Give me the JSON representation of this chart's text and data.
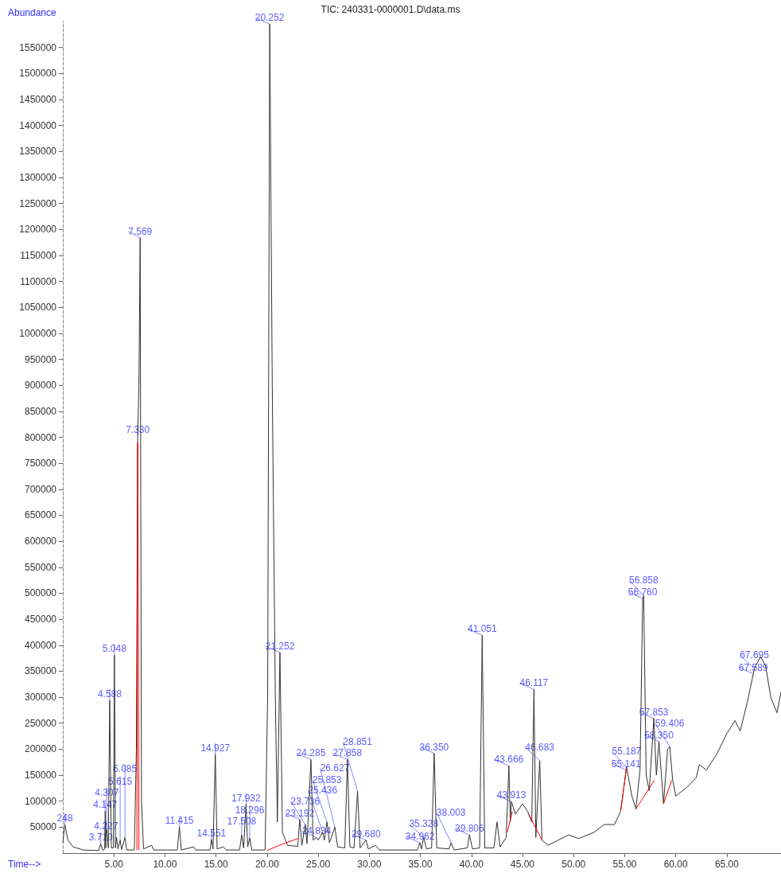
{
  "chart_data": {
    "type": "line",
    "title": "TIC: 240331-0000001.D\\data.ms",
    "xlabel": "Time-->",
    "ylabel": "Abundance",
    "marker": "none",
    "xlim": [
      0,
      70.3
    ],
    "ylim": [
      0,
      1600000
    ],
    "xticks": [
      {
        "value": 5,
        "label": "5.00"
      },
      {
        "value": 10,
        "label": "10.00"
      },
      {
        "value": 15,
        "label": "15.00"
      },
      {
        "value": 20,
        "label": "20.00"
      },
      {
        "value": 25,
        "label": "25.00"
      },
      {
        "value": 30,
        "label": "30.00"
      },
      {
        "value": 35,
        "label": "35.00"
      },
      {
        "value": 40,
        "label": "40.00"
      },
      {
        "value": 45,
        "label": "45.00"
      },
      {
        "value": 50,
        "label": "50.00"
      },
      {
        "value": 55,
        "label": "55.00"
      },
      {
        "value": 60,
        "label": "60.00"
      },
      {
        "value": 65,
        "label": "65.00"
      }
    ],
    "yticks": [
      50000,
      100000,
      150000,
      200000,
      250000,
      300000,
      350000,
      400000,
      450000,
      500000,
      550000,
      600000,
      650000,
      700000,
      750000,
      800000,
      850000,
      900000,
      950000,
      1000000,
      1050000,
      1100000,
      1150000,
      1200000,
      1250000,
      1300000,
      1350000,
      1400000,
      1450000,
      1500000,
      1550000
    ],
    "series": [
      {
        "color": "#333333",
        "x": [
          0,
          0.2,
          0.5,
          1.0,
          2,
          3.5,
          3.71,
          3.9,
          4.1,
          4.147,
          4.2,
          4.227,
          4.307,
          4.45,
          4.588,
          4.75,
          4.95,
          5.048,
          5.15,
          5.261,
          5.4,
          5.615,
          5.75,
          6.085,
          6.25,
          7.0,
          7.2,
          7.33,
          7.45,
          7.569,
          7.7,
          7.9,
          8.7,
          8.9,
          11.2,
          11.415,
          11.6,
          12.8,
          13,
          14.4,
          14.551,
          14.7,
          14.927,
          15.1,
          15.7,
          16,
          17.3,
          17.508,
          17.7,
          17.932,
          18.1,
          18.296,
          18.5,
          19.8,
          20.05,
          20.252,
          20.5,
          20.8,
          21.0,
          21.252,
          21.5,
          22,
          23,
          23.192,
          23.4,
          23.736,
          23.9,
          24.285,
          24.5,
          24.834,
          25.0,
          25.436,
          25.6,
          25.853,
          26.1,
          26.627,
          26.9,
          27.6,
          27.858,
          28.1,
          28.5,
          28.851,
          29.1,
          29.68,
          29.9,
          30.6,
          31,
          34.7,
          34.962,
          35.1,
          35.328,
          35.6,
          36.1,
          36.35,
          36.6,
          37.8,
          38.003,
          38.3,
          39.6,
          39.806,
          40.1,
          40.8,
          41.051,
          41.3,
          42.2,
          42.5,
          42.8,
          43.4,
          43.666,
          43.8,
          43.913,
          44.3,
          45.0,
          45.5,
          45.9,
          46.117,
          46.3,
          46.683,
          46.9,
          47.5,
          48.5,
          49.5,
          50.5,
          52,
          53,
          54,
          54.6,
          55.141,
          55.187,
          55.7,
          56.1,
          56.5,
          56.76,
          56.858,
          57.1,
          57.4,
          57.853,
          58.1,
          58.35,
          58.8,
          59.2,
          59.406,
          59.7,
          60,
          61,
          62,
          62.3,
          63,
          64,
          65,
          65.8,
          66.3,
          67,
          67.589,
          67.695,
          68.3,
          68.8,
          69.3,
          69.9,
          70.3
        ],
        "values": [
          20000,
          55000,
          25000,
          12000,
          6000,
          5000,
          18000,
          5000,
          8000,
          81000,
          10000,
          40000,
          45000,
          10000,
          294000,
          10000,
          10000,
          381000,
          10000,
          30000,
          8000,
          25000,
          7000,
          30000,
          6000,
          6000,
          200000,
          803000,
          900000,
          1184000,
          100000,
          8000,
          15000,
          6000,
          6000,
          50000,
          6000,
          12000,
          6000,
          6000,
          26000,
          8000,
          190000,
          8000,
          12000,
          6000,
          6000,
          35000,
          10000,
          94000,
          12000,
          29000,
          6000,
          6000,
          300000,
          1595000,
          900000,
          300000,
          60000,
          386000,
          40000,
          15000,
          13000,
          65000,
          15000,
          55000,
          18000,
          180000,
          25000,
          30000,
          25000,
          40000,
          25000,
          60000,
          20000,
          50000,
          12000,
          10000,
          180000,
          12000,
          10000,
          119000,
          10000,
          25000,
          8000,
          15000,
          6000,
          6000,
          20000,
          8000,
          30000,
          8000,
          10000,
          192000,
          10000,
          8000,
          20000,
          6000,
          10000,
          35000,
          8000,
          10000,
          419000,
          10000,
          10000,
          60000,
          12000,
          30000,
          168000,
          60000,
          99000,
          75000,
          95000,
          80000,
          60000,
          315000,
          30000,
          178000,
          25000,
          15000,
          25000,
          35000,
          28000,
          40000,
          55000,
          55000,
          80000,
          160000,
          165000,
          110000,
          85000,
          160000,
          490000,
          495000,
          150000,
          120000,
          259000,
          150000,
          215000,
          95000,
          200000,
          205000,
          140000,
          110000,
          125000,
          145000,
          170000,
          160000,
          190000,
          230000,
          255000,
          235000,
          290000,
          345000,
          355000,
          378000,
          360000,
          300000,
          270000,
          310000
        ]
      },
      {
        "color": "#ff0000",
        "x": [
          7.25,
          7.33,
          7.45,
          7.46,
          20.0,
          21.2,
          23.0,
          23.01,
          43.5,
          44.0,
          44.01,
          45.6,
          46.9,
          46.91,
          54.6,
          55.187,
          55.19,
          56.1,
          57.9,
          57.91,
          58.8,
          59.6
        ],
        "values": [
          6000,
          790000,
          6000,
          null,
          5000,
          15000,
          28000,
          null,
          40000,
          80000,
          null,
          75000,
          25000,
          null,
          80000,
          165000,
          null,
          85000,
          140000,
          null,
          95000,
          140000
        ]
      }
    ],
    "annotations": [
      {
        "text": "248",
        "x": 0.2,
        "y": 55000
      },
      {
        "text": "3.710",
        "x": 3.71,
        "y": 18000
      },
      {
        "text": "4.147",
        "x": 4.147,
        "y": 81000
      },
      {
        "text": "4.227",
        "x": 4.227,
        "y": 40000
      },
      {
        "text": "4.307",
        "x": 4.307,
        "y": 45000
      },
      {
        "text": "4.588",
        "x": 4.588,
        "y": 294000
      },
      {
        "text": "5.048",
        "x": 5.048,
        "y": 381000
      },
      {
        "text": "5.615",
        "x": 5.615,
        "y": 25000
      },
      {
        "text": "6.085",
        "x": 6.085,
        "y": 30000
      },
      {
        "text": "7.330",
        "x": 7.33,
        "y": 803000
      },
      {
        "text": "7.569",
        "x": 7.569,
        "y": 1184000
      },
      {
        "text": "11.415",
        "x": 11.415,
        "y": 50000
      },
      {
        "text": "14.551",
        "x": 14.551,
        "y": 26000
      },
      {
        "text": "14.927",
        "x": 14.927,
        "y": 190000
      },
      {
        "text": "17.508",
        "x": 17.508,
        "y": 35000
      },
      {
        "text": "17.932",
        "x": 17.932,
        "y": 94000
      },
      {
        "text": "18.296",
        "x": 18.296,
        "y": 29000
      },
      {
        "text": "20.252",
        "x": 20.252,
        "y": 1595000
      },
      {
        "text": "21.252",
        "x": 21.252,
        "y": 386000
      },
      {
        "text": "23.192",
        "x": 23.192,
        "y": 65000
      },
      {
        "text": "23.736",
        "x": 23.736,
        "y": 55000
      },
      {
        "text": "24.285",
        "x": 24.285,
        "y": 180000
      },
      {
        "text": "24.834",
        "x": 24.834,
        "y": 30000
      },
      {
        "text": "25.436",
        "x": 25.436,
        "y": 40000
      },
      {
        "text": "25.853",
        "x": 25.853,
        "y": 60000
      },
      {
        "text": "26.627",
        "x": 26.627,
        "y": 50000
      },
      {
        "text": "27.858",
        "x": 27.858,
        "y": 180000
      },
      {
        "text": "28.851",
        "x": 28.851,
        "y": 119000
      },
      {
        "text": "29.680",
        "x": 29.68,
        "y": 25000
      },
      {
        "text": "34.962",
        "x": 34.962,
        "y": 20000
      },
      {
        "text": "35.328",
        "x": 35.328,
        "y": 30000
      },
      {
        "text": "36.350",
        "x": 36.35,
        "y": 192000
      },
      {
        "text": "38.003",
        "x": 38.003,
        "y": 20000
      },
      {
        "text": "39.806",
        "x": 39.806,
        "y": 35000
      },
      {
        "text": "41.051",
        "x": 41.051,
        "y": 419000
      },
      {
        "text": "43.666",
        "x": 43.666,
        "y": 168000
      },
      {
        "text": "43.913",
        "x": 43.913,
        "y": 99000
      },
      {
        "text": "46.117",
        "x": 46.117,
        "y": 315000
      },
      {
        "text": "46.683",
        "x": 46.683,
        "y": 178000
      },
      {
        "text": "55.141",
        "x": 55.141,
        "y": 160000
      },
      {
        "text": "55.187",
        "x": 55.187,
        "y": 165000
      },
      {
        "text": "56.760",
        "x": 56.76,
        "y": 490000
      },
      {
        "text": "56.858",
        "x": 56.858,
        "y": 495000
      },
      {
        "text": "57.853",
        "x": 57.853,
        "y": 259000
      },
      {
        "text": "58.350",
        "x": 58.35,
        "y": 215000
      },
      {
        "text": "59.406",
        "x": 59.406,
        "y": 205000
      },
      {
        "text": "67.589",
        "x": 67.589,
        "y": 345000
      },
      {
        "text": "67.695",
        "x": 67.695,
        "y": 355000
      }
    ]
  }
}
